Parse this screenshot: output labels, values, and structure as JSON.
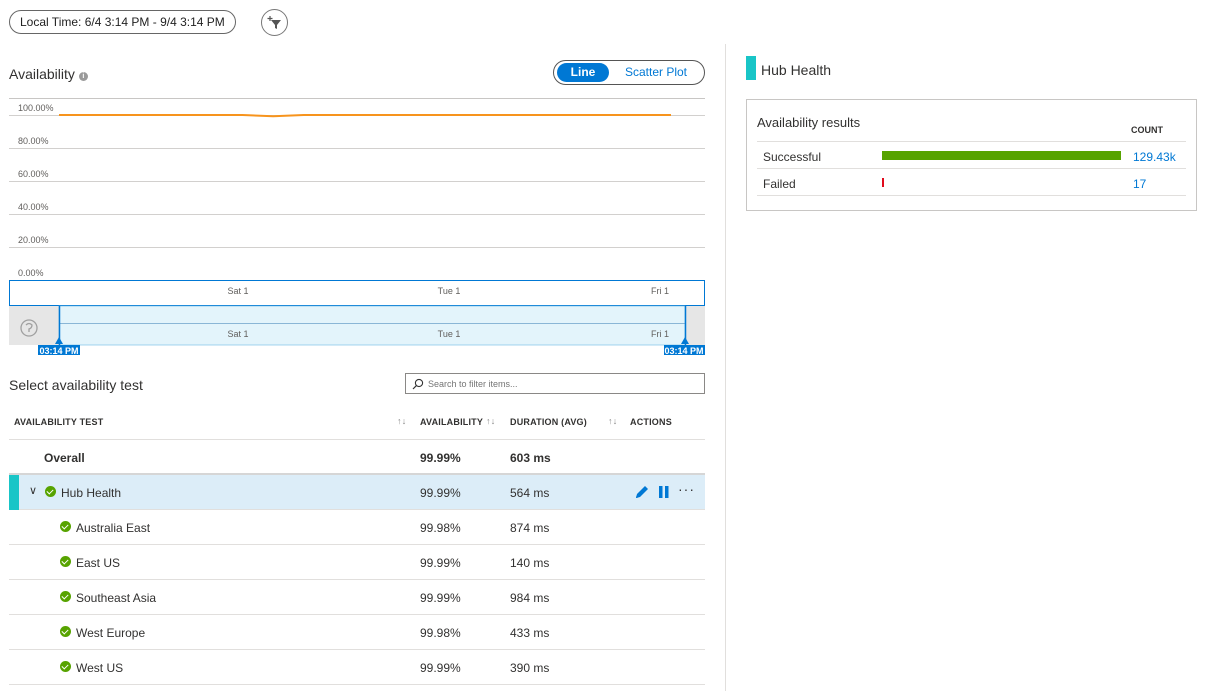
{
  "toolbar": {
    "time_range": "Local Time: 6/4 3:14 PM - 9/4 3:14 PM",
    "filter_icon": "add-filter-icon"
  },
  "availability": {
    "title": "Availability",
    "info_icon": "info-icon",
    "toggle": {
      "line": "Line",
      "scatter": "Scatter Plot",
      "selected": "Line"
    }
  },
  "chart_data": {
    "type": "line",
    "ylim": [
      0,
      100
    ],
    "yticks": [
      "100.00%",
      "80.00%",
      "60.00%",
      "40.00%",
      "20.00%",
      "0.00%"
    ],
    "xticks": [
      "Sat 1",
      "Tue 1",
      "Fri 1"
    ],
    "x": [
      0,
      0.1,
      0.2,
      0.3,
      0.35,
      0.4,
      0.45,
      0.5,
      0.55,
      0.6,
      0.7,
      0.8,
      0.9,
      1.0
    ],
    "series": [
      {
        "values": [
          99.99,
          99.99,
          99.99,
          99.99,
          99.2,
          99.99,
          99.99,
          99.99,
          99.99,
          99.99,
          99.99,
          99.99,
          99.99,
          99.99
        ],
        "color": "#f7941d"
      }
    ],
    "grid": true
  },
  "brush": {
    "xticks": [
      "Sat 1",
      "Tue 1",
      "Fri 1"
    ],
    "start_label": "03:14 PM",
    "end_label": "03:14 PM",
    "reset_icon": "reset-zoom-icon"
  },
  "test_list": {
    "title": "Select availability test",
    "search_placeholder": "Search to filter items...",
    "columns": {
      "test": "AVAILABILITY TEST",
      "availability": "AVAILABILITY",
      "duration": "DURATION (AVG)",
      "actions": "ACTIONS"
    },
    "overall": {
      "name": "Overall",
      "availability": "99.99%",
      "duration": "603 ms"
    },
    "hub": {
      "name": "Hub Health",
      "availability": "99.99%",
      "duration": "564 ms"
    },
    "locations": [
      {
        "name": "Australia East",
        "availability": "99.98%",
        "duration": "874 ms"
      },
      {
        "name": "East US",
        "availability": "99.99%",
        "duration": "140 ms"
      },
      {
        "name": "Southeast Asia",
        "availability": "99.99%",
        "duration": "984 ms"
      },
      {
        "name": "West Europe",
        "availability": "99.98%",
        "duration": "433 ms"
      },
      {
        "name": "West US",
        "availability": "99.99%",
        "duration": "390 ms"
      }
    ]
  },
  "side_panel": {
    "title": "Hub Health",
    "results_title": "Availability results",
    "count_header": "COUNT",
    "rows": [
      {
        "label": "Successful",
        "count": "129.43k",
        "fraction": 1.0,
        "color": "#57a300"
      },
      {
        "label": "Failed",
        "count": "17",
        "fraction": 0.00013,
        "color": "#e00b1c"
      }
    ]
  }
}
